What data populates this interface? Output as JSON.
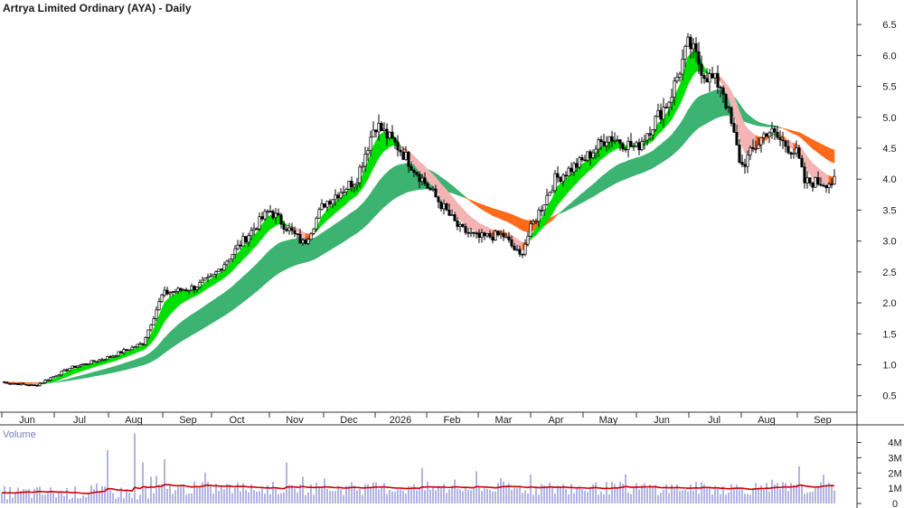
{
  "chart_data": [
    {
      "type": "candlestick",
      "title": "Artrya Limited Ordinary (AYA) - Daily",
      "ylim": [
        0.35,
        6.75
      ],
      "yticks": [
        "6.5",
        "6.0",
        "5.5",
        "5.0",
        "4.5",
        "4.0",
        "3.5",
        "3.0",
        "2.5",
        "2.0",
        "1.5",
        "1.0",
        "0.5"
      ],
      "xticks": [
        "Jun",
        "Jul",
        "Aug",
        "Sep",
        "Oct",
        "Nov",
        "Dec",
        "2026",
        "Feb",
        "Mar",
        "Apr",
        "May",
        "Jun",
        "Jul",
        "Aug",
        "Sep"
      ],
      "price_anchors": {
        "x": [
          "Jun 01",
          "Jun 20",
          "Jul 10",
          "Aug 01",
          "Aug 20",
          "Sep 01",
          "Sep 20",
          "Oct 01",
          "Oct 20",
          "Nov 01",
          "Nov 20",
          "Dec 01",
          "Dec 20",
          "Jan 01",
          "Jan 15",
          "Feb 01",
          "Feb 20",
          "Mar 01",
          "Mar 15",
          "Mar 25",
          "Apr 01",
          "Apr 15",
          "May 01",
          "May 15",
          "Jun 01",
          "Jun 20",
          "Jul 01",
          "Jul 10",
          "Jul 20",
          "Aug 01",
          "Aug 15",
          "Sep 01",
          "Sep 05"
        ],
        "close": [
          0.72,
          0.66,
          0.95,
          1.12,
          1.35,
          2.15,
          2.25,
          2.4,
          3.1,
          3.5,
          2.95,
          3.6,
          4.0,
          4.9,
          4.5,
          3.9,
          3.2,
          3.05,
          3.1,
          2.75,
          3.2,
          4.0,
          4.3,
          4.7,
          4.5,
          5.3,
          6.2,
          5.7,
          5.5,
          4.2,
          4.8,
          4.4,
          3.95
        ]
      },
      "moving_average_bands": [
        {
          "name": "",
          "color": "#00e000",
          "color_down": "#ff6a1a"
        },
        {
          "name": "",
          "color": "#3cb371",
          "color_down": "#ff6a1a"
        }
      ],
      "colors": {
        "up": "#000000",
        "down": "#000000",
        "fast_band_faded": "#f4b4b4"
      }
    },
    {
      "type": "bar",
      "title": "Volume",
      "yticks": [
        "4M",
        "3M",
        "2M",
        "1M",
        "0"
      ],
      "ylim": [
        0,
        4.8
      ],
      "unit": "M",
      "average_line_color": "#cc0000",
      "bar_color": "#8080d0",
      "volume_spikes": [
        {
          "x": "Aug 16",
          "value": 4.6
        },
        {
          "x": "Aug 20",
          "value": 2.7
        },
        {
          "x": "Sep 02",
          "value": 2.9
        },
        {
          "x": "Aug 01",
          "value": 3.5
        },
        {
          "x": "Aug 28",
          "value": 1.8
        }
      ]
    }
  ]
}
